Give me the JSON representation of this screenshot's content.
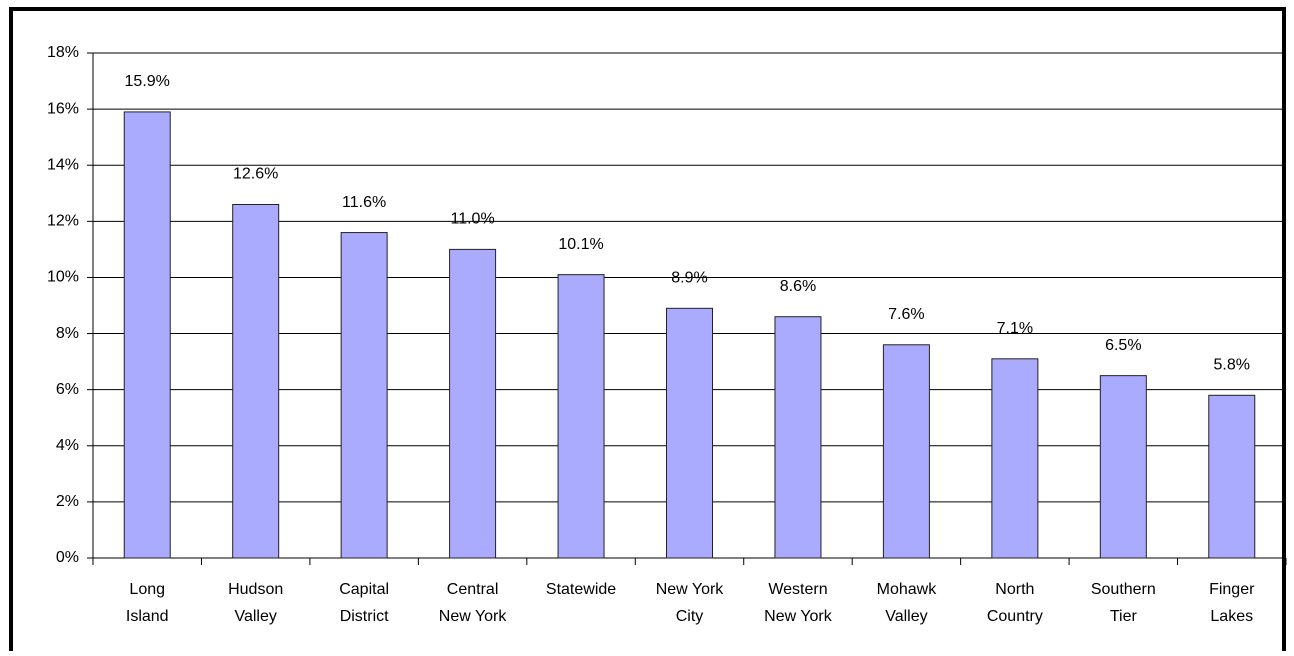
{
  "chart_data": {
    "type": "bar",
    "categories": [
      [
        "Long",
        "Island"
      ],
      [
        "Hudson",
        "Valley"
      ],
      [
        "Capital",
        "District"
      ],
      [
        "Central",
        "New York"
      ],
      [
        "Statewide"
      ],
      [
        "New York",
        "City"
      ],
      [
        "Western",
        "New York"
      ],
      [
        "Mohawk",
        "Valley"
      ],
      [
        "North",
        "Country"
      ],
      [
        "Southern",
        "Tier"
      ],
      [
        "Finger",
        "Lakes"
      ]
    ],
    "values": [
      15.9,
      12.6,
      11.6,
      11.0,
      10.1,
      8.9,
      8.6,
      7.6,
      7.1,
      6.5,
      5.8
    ],
    "value_labels": [
      "15.9%",
      "12.6%",
      "11.6%",
      "11.0%",
      "10.1%",
      "8.9%",
      "8.6%",
      "7.6%",
      "7.1%",
      "6.5%",
      "5.8%"
    ],
    "color": "#aaaaff",
    "ylim": [
      0,
      18
    ],
    "yticks": [
      {
        "value": 0,
        "label": "0%"
      },
      {
        "value": 2,
        "label": "2%"
      },
      {
        "value": 4,
        "label": "4%"
      },
      {
        "value": 6,
        "label": "6%"
      },
      {
        "value": 8,
        "label": "8%"
      },
      {
        "value": 10,
        "label": "10%"
      },
      {
        "value": 12,
        "label": "12%"
      },
      {
        "value": 14,
        "label": "14%"
      },
      {
        "value": 16,
        "label": "16%"
      },
      {
        "value": 18,
        "label": "18%"
      }
    ],
    "grid": true
  }
}
